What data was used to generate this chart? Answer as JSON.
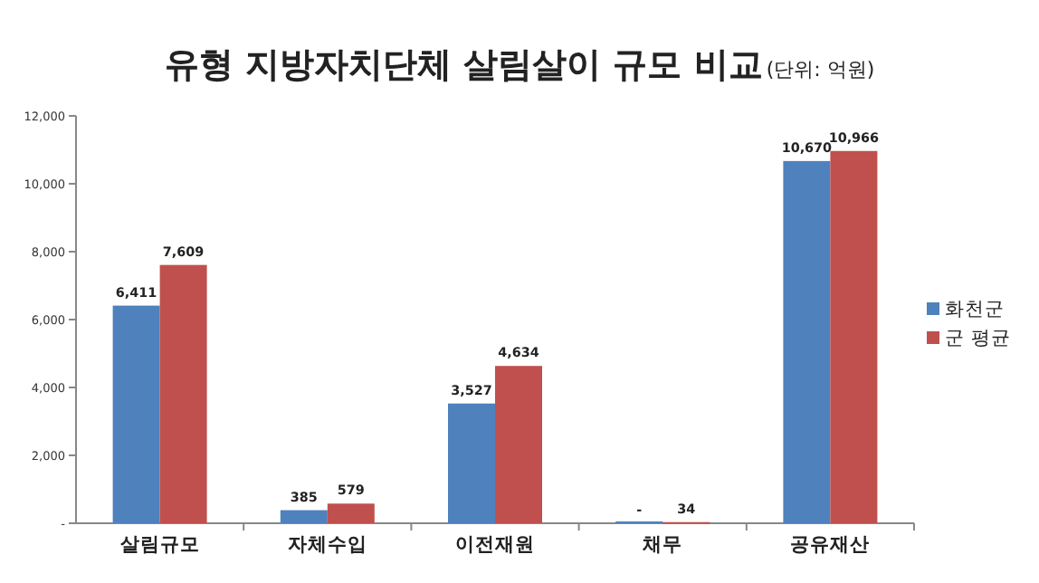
{
  "chart_data": {
    "type": "bar",
    "title": "유형 지방자치단체 살림살이 규모 비교",
    "subtitle": "(단위: 억원)",
    "categories": [
      "살림규모",
      "자체수입",
      "이전재원",
      "채무",
      "공유재산"
    ],
    "series": [
      {
        "name": "화천군",
        "color": "#4f81bd",
        "values": [
          6411,
          385,
          3527,
          0,
          10670
        ],
        "value_labels": [
          "6,411",
          "385",
          "3,527",
          "-",
          "10,670"
        ]
      },
      {
        "name": "군 평균",
        "color": "#c0504d",
        "values": [
          7609,
          579,
          4634,
          34,
          10966
        ],
        "value_labels": [
          "7,609",
          "579",
          "4,634",
          "34",
          "10,966"
        ]
      }
    ],
    "ylim": [
      0,
      12000
    ],
    "yticks": [
      {
        "value": 0,
        "label": "-"
      },
      {
        "value": 2000,
        "label": "2,000"
      },
      {
        "value": 4000,
        "label": "4,000"
      },
      {
        "value": 6000,
        "label": "6,000"
      },
      {
        "value": 8000,
        "label": "8,000"
      },
      {
        "value": 10000,
        "label": "10,000"
      },
      {
        "value": 12000,
        "label": "12,000"
      }
    ],
    "grid": false,
    "legend": "right"
  }
}
